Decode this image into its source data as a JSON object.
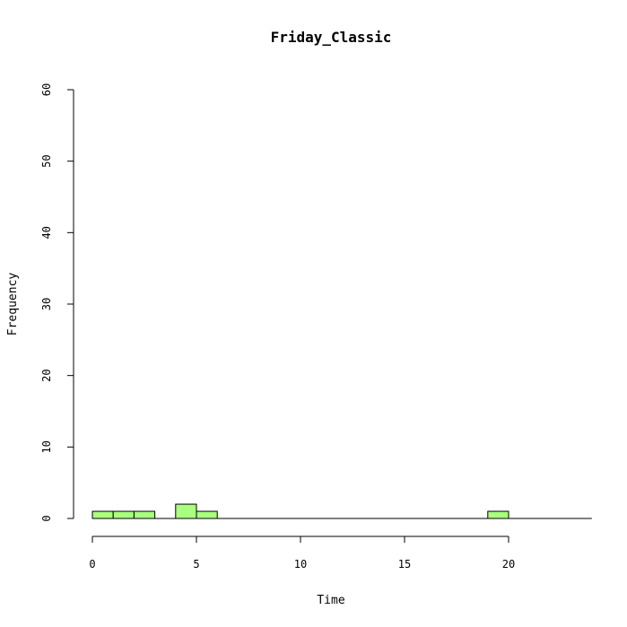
{
  "chart_data": {
    "type": "bar",
    "title": "Friday_Classic",
    "xlabel": "Time",
    "ylabel": "Frequency",
    "bin_width": 1,
    "bins": [
      {
        "start": 0,
        "end": 1,
        "count": 1
      },
      {
        "start": 1,
        "end": 2,
        "count": 1
      },
      {
        "start": 2,
        "end": 3,
        "count": 1
      },
      {
        "start": 3,
        "end": 4,
        "count": 0
      },
      {
        "start": 4,
        "end": 5,
        "count": 2
      },
      {
        "start": 5,
        "end": 6,
        "count": 1
      },
      {
        "start": 6,
        "end": 7,
        "count": 0
      },
      {
        "start": 7,
        "end": 8,
        "count": 0
      },
      {
        "start": 8,
        "end": 9,
        "count": 0
      },
      {
        "start": 9,
        "end": 10,
        "count": 0
      },
      {
        "start": 10,
        "end": 11,
        "count": 0
      },
      {
        "start": 11,
        "end": 12,
        "count": 0
      },
      {
        "start": 12,
        "end": 13,
        "count": 0
      },
      {
        "start": 13,
        "end": 14,
        "count": 0
      },
      {
        "start": 14,
        "end": 15,
        "count": 0
      },
      {
        "start": 15,
        "end": 16,
        "count": 0
      },
      {
        "start": 16,
        "end": 17,
        "count": 0
      },
      {
        "start": 17,
        "end": 18,
        "count": 0
      },
      {
        "start": 18,
        "end": 19,
        "count": 0
      },
      {
        "start": 19,
        "end": 20,
        "count": 1
      },
      {
        "start": 20,
        "end": 21,
        "count": 0
      },
      {
        "start": 21,
        "end": 22,
        "count": 0
      },
      {
        "start": 22,
        "end": 23,
        "count": 0
      },
      {
        "start": 23,
        "end": 24,
        "count": 0
      }
    ],
    "xlim": [
      0,
      24
    ],
    "ylim": [
      0,
      60
    ],
    "x_ticks": [
      0,
      5,
      10,
      15,
      20
    ],
    "y_ticks": [
      0,
      10,
      20,
      30,
      40,
      50,
      60
    ],
    "x_axis_end": 20,
    "grid": false,
    "legend": "none",
    "bar_color": "#aaff80",
    "edge_color": "#000000"
  }
}
